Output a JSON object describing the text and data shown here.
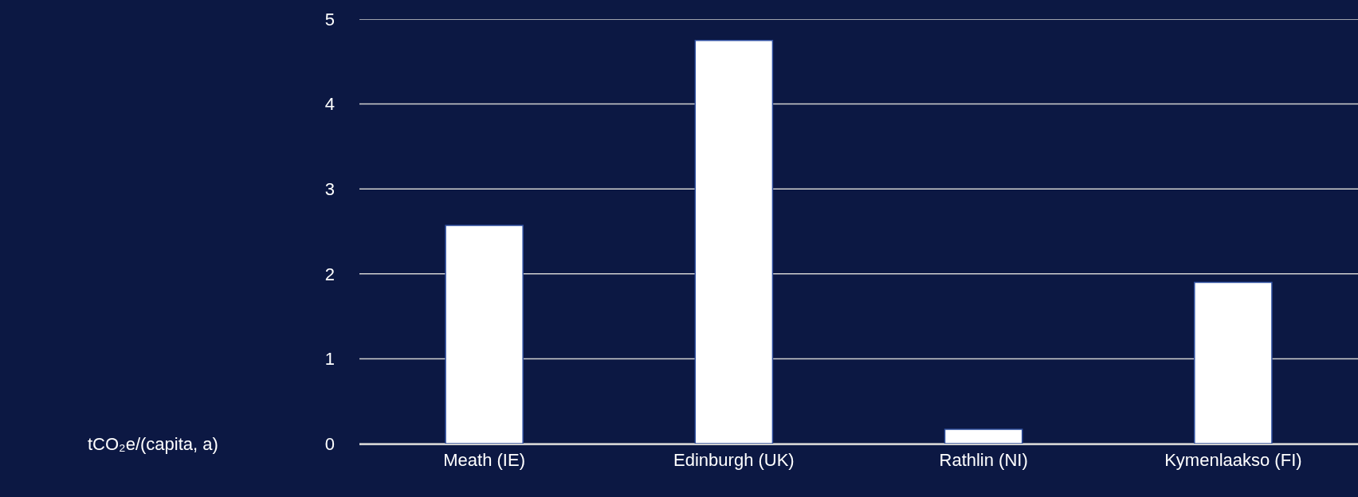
{
  "chart_data": {
    "type": "bar",
    "annotations": [
      "tCO₂e/(capita, a)"
    ],
    "categories": [
      "Meath (IE)",
      "Edinburgh (UK)",
      "Rathlin (NI)",
      "Kymenlaakso (FI)"
    ],
    "values": [
      2.57,
      4.75,
      0.17,
      1.9
    ],
    "color": "#ffffff",
    "ylim": [
      0,
      5
    ],
    "yticks": [
      0,
      1,
      2,
      3,
      4,
      5
    ],
    "grid": "y",
    "legend": false
  }
}
